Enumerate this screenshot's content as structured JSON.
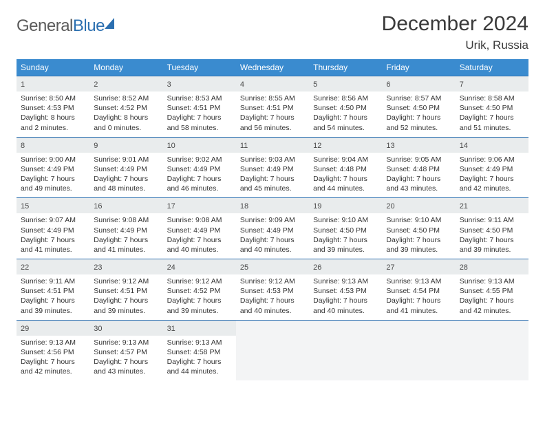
{
  "logo": {
    "word1": "General",
    "word2": "Blue"
  },
  "title": "December 2024",
  "subtitle": "Urik, Russia",
  "colors": {
    "header_bg": "#3a8bcf",
    "header_text": "#ffffff",
    "daybar_bg": "#e9eced",
    "daybar_border": "#2b6fb0",
    "body_text": "#333333",
    "empty_bg": "#f3f4f5"
  },
  "weekdays": [
    "Sunday",
    "Monday",
    "Tuesday",
    "Wednesday",
    "Thursday",
    "Friday",
    "Saturday"
  ],
  "weeks": [
    [
      {
        "n": "1",
        "sr": "8:50 AM",
        "ss": "4:53 PM",
        "dl": "8 hours and 2 minutes."
      },
      {
        "n": "2",
        "sr": "8:52 AM",
        "ss": "4:52 PM",
        "dl": "8 hours and 0 minutes."
      },
      {
        "n": "3",
        "sr": "8:53 AM",
        "ss": "4:51 PM",
        "dl": "7 hours and 58 minutes."
      },
      {
        "n": "4",
        "sr": "8:55 AM",
        "ss": "4:51 PM",
        "dl": "7 hours and 56 minutes."
      },
      {
        "n": "5",
        "sr": "8:56 AM",
        "ss": "4:50 PM",
        "dl": "7 hours and 54 minutes."
      },
      {
        "n": "6",
        "sr": "8:57 AM",
        "ss": "4:50 PM",
        "dl": "7 hours and 52 minutes."
      },
      {
        "n": "7",
        "sr": "8:58 AM",
        "ss": "4:50 PM",
        "dl": "7 hours and 51 minutes."
      }
    ],
    [
      {
        "n": "8",
        "sr": "9:00 AM",
        "ss": "4:49 PM",
        "dl": "7 hours and 49 minutes."
      },
      {
        "n": "9",
        "sr": "9:01 AM",
        "ss": "4:49 PM",
        "dl": "7 hours and 48 minutes."
      },
      {
        "n": "10",
        "sr": "9:02 AM",
        "ss": "4:49 PM",
        "dl": "7 hours and 46 minutes."
      },
      {
        "n": "11",
        "sr": "9:03 AM",
        "ss": "4:49 PM",
        "dl": "7 hours and 45 minutes."
      },
      {
        "n": "12",
        "sr": "9:04 AM",
        "ss": "4:48 PM",
        "dl": "7 hours and 44 minutes."
      },
      {
        "n": "13",
        "sr": "9:05 AM",
        "ss": "4:48 PM",
        "dl": "7 hours and 43 minutes."
      },
      {
        "n": "14",
        "sr": "9:06 AM",
        "ss": "4:49 PM",
        "dl": "7 hours and 42 minutes."
      }
    ],
    [
      {
        "n": "15",
        "sr": "9:07 AM",
        "ss": "4:49 PM",
        "dl": "7 hours and 41 minutes."
      },
      {
        "n": "16",
        "sr": "9:08 AM",
        "ss": "4:49 PM",
        "dl": "7 hours and 41 minutes."
      },
      {
        "n": "17",
        "sr": "9:08 AM",
        "ss": "4:49 PM",
        "dl": "7 hours and 40 minutes."
      },
      {
        "n": "18",
        "sr": "9:09 AM",
        "ss": "4:49 PM",
        "dl": "7 hours and 40 minutes."
      },
      {
        "n": "19",
        "sr": "9:10 AM",
        "ss": "4:50 PM",
        "dl": "7 hours and 39 minutes."
      },
      {
        "n": "20",
        "sr": "9:10 AM",
        "ss": "4:50 PM",
        "dl": "7 hours and 39 minutes."
      },
      {
        "n": "21",
        "sr": "9:11 AM",
        "ss": "4:50 PM",
        "dl": "7 hours and 39 minutes."
      }
    ],
    [
      {
        "n": "22",
        "sr": "9:11 AM",
        "ss": "4:51 PM",
        "dl": "7 hours and 39 minutes."
      },
      {
        "n": "23",
        "sr": "9:12 AM",
        "ss": "4:51 PM",
        "dl": "7 hours and 39 minutes."
      },
      {
        "n": "24",
        "sr": "9:12 AM",
        "ss": "4:52 PM",
        "dl": "7 hours and 39 minutes."
      },
      {
        "n": "25",
        "sr": "9:12 AM",
        "ss": "4:53 PM",
        "dl": "7 hours and 40 minutes."
      },
      {
        "n": "26",
        "sr": "9:13 AM",
        "ss": "4:53 PM",
        "dl": "7 hours and 40 minutes."
      },
      {
        "n": "27",
        "sr": "9:13 AM",
        "ss": "4:54 PM",
        "dl": "7 hours and 41 minutes."
      },
      {
        "n": "28",
        "sr": "9:13 AM",
        "ss": "4:55 PM",
        "dl": "7 hours and 42 minutes."
      }
    ],
    [
      {
        "n": "29",
        "sr": "9:13 AM",
        "ss": "4:56 PM",
        "dl": "7 hours and 42 minutes."
      },
      {
        "n": "30",
        "sr": "9:13 AM",
        "ss": "4:57 PM",
        "dl": "7 hours and 43 minutes."
      },
      {
        "n": "31",
        "sr": "9:13 AM",
        "ss": "4:58 PM",
        "dl": "7 hours and 44 minutes."
      },
      null,
      null,
      null,
      null
    ]
  ],
  "labels": {
    "sunrise": "Sunrise:",
    "sunset": "Sunset:",
    "daylight": "Daylight:"
  }
}
